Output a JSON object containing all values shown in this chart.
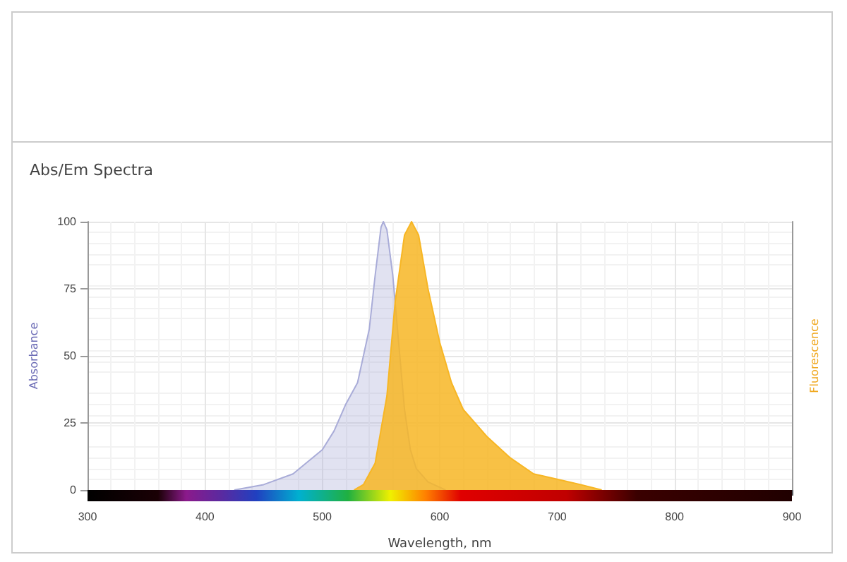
{
  "chart_data": {
    "type": "area",
    "title": "Abs/Em Spectra",
    "xlabel": "Wavelength, nm",
    "ylabel": "Absorbance",
    "y2label": "Fluorescence",
    "xlim": [
      300,
      900
    ],
    "xticks": [
      300,
      400,
      500,
      600,
      700,
      800,
      900
    ],
    "ylim": [
      0,
      100
    ],
    "yticks": [
      0,
      25,
      50,
      75,
      100
    ],
    "grid": true,
    "series": [
      {
        "color": "#a9acd8",
        "x": [
          425,
          450,
          475,
          500,
          510,
          520,
          530,
          540,
          545,
          550,
          552,
          555,
          560,
          565,
          570,
          575,
          580,
          590,
          605
        ],
        "values": [
          0,
          2,
          6,
          15,
          22,
          32,
          40,
          60,
          80,
          98,
          100,
          97,
          80,
          55,
          30,
          15,
          8,
          3,
          0
        ]
      },
      {
        "color": "#f7b624",
        "x": [
          527,
          535,
          545,
          555,
          562,
          570,
          576,
          582,
          590,
          600,
          610,
          620,
          630,
          640,
          660,
          680,
          700,
          720,
          738
        ],
        "values": [
          0,
          2,
          10,
          35,
          70,
          95,
          100,
          95,
          75,
          55,
          40,
          30,
          25,
          20,
          12,
          6,
          4,
          2,
          0
        ]
      }
    ]
  }
}
